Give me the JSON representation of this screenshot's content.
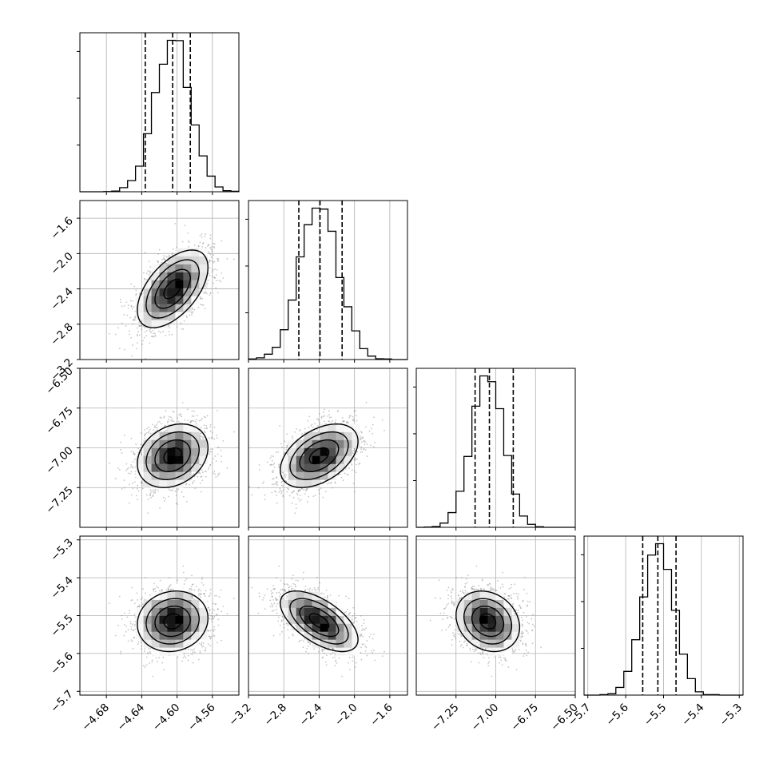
{
  "chart_data": {
    "type": "corner",
    "title": "",
    "n_params": 4,
    "params": [
      {
        "xlim": [
          -4.71,
          -4.53
        ],
        "ticks": [
          -4.68,
          -4.64,
          -4.6,
          -4.56
        ],
        "tick_labels": [
          "−4.68",
          "−4.64",
          "−4.60",
          "−4.56"
        ],
        "mean": -4.605,
        "sd": 0.02,
        "quantiles": [
          -4.636,
          -4.605,
          -4.585
        ]
      },
      {
        "xlim": [
          -3.2,
          -1.4
        ],
        "ticks": [
          -3.2,
          -2.8,
          -2.4,
          -2.0,
          -1.6
        ],
        "tick_labels": [
          "−3.2",
          "−2.8",
          "−2.4",
          "−2.0",
          "−1.6"
        ],
        "mean": -2.4,
        "sd": 0.22,
        "quantiles": [
          -2.63,
          -2.39,
          -2.14
        ]
      },
      {
        "xlim": [
          -7.5,
          -6.5
        ],
        "ticks": [
          -7.25,
          -7.0,
          -6.75,
          -6.5
        ],
        "tick_labels": [
          "−7.25",
          "−7.00",
          "−6.75",
          "−6.50"
        ],
        "mean": -7.05,
        "sd": 0.1,
        "quantiles": [
          -7.13,
          -7.04,
          -6.89
        ]
      },
      {
        "xlim": [
          -5.71,
          -5.29
        ],
        "ticks": [
          -5.7,
          -5.6,
          -5.5,
          -5.4,
          -5.3
        ],
        "tick_labels": [
          "−5.7",
          "−5.6",
          "−5.5",
          "−5.4",
          "−5.3"
        ],
        "mean": -5.515,
        "sd": 0.04,
        "quantiles": [
          -5.555,
          -5.515,
          -5.467
        ]
      }
    ],
    "correlations": [
      [
        1,
        0.55,
        0.25,
        0.1
      ],
      [
        0.55,
        1,
        0.45,
        -0.6
      ],
      [
        0.25,
        0.45,
        1,
        -0.2
      ],
      [
        0.1,
        -0.6,
        -0.2,
        1
      ]
    ],
    "histogram_bins": 20,
    "grid": true,
    "quantile_line_style": "dashed",
    "colors": {
      "line": "#000000",
      "points": "#808080",
      "grid": "#b0b0b0"
    }
  }
}
